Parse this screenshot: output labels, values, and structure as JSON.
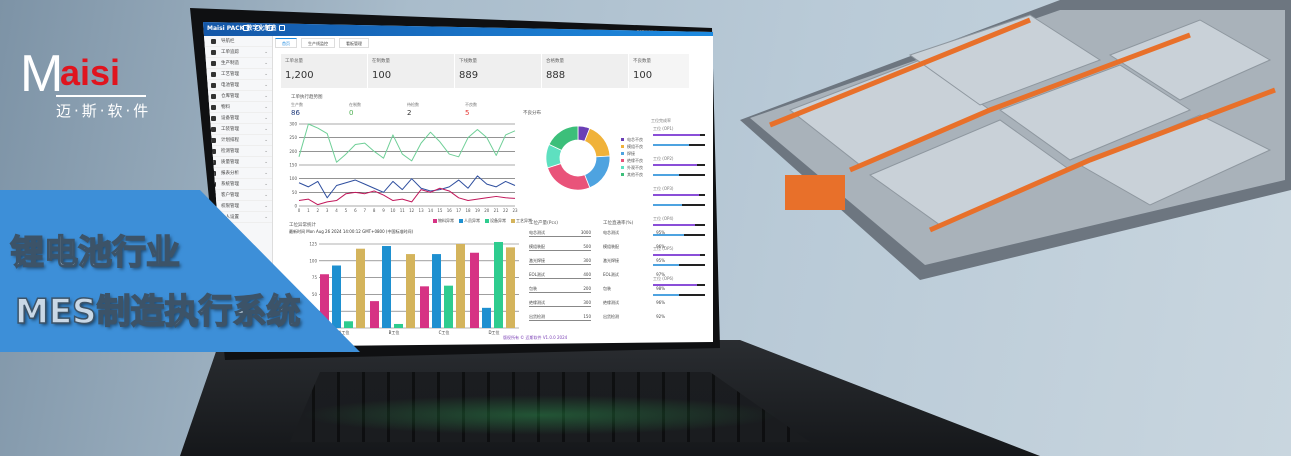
{
  "logo": {
    "mark_m": "M",
    "mark_rest": "aisi",
    "subtitle": "迈·斯·软·件"
  },
  "slogan": {
    "line1": "锂电池行业",
    "line2": "MES制造执行系统"
  },
  "screen": {
    "brand": "Maisi PACK 数字化制造",
    "header_right": "2024-08-26 14:00:12 admin",
    "sidebar": {
      "title": "导航栏",
      "items": [
        "工单追踪",
        "生产制造",
        "工艺管理",
        "电池管理",
        "仓库管理",
        "物料",
        "设备管理",
        "工装管理",
        "计划排程",
        "检测管理",
        "质量管理",
        "报表分析",
        "系统管理",
        "客户管理",
        "权限管理",
        "个人设置"
      ]
    },
    "tabs": [
      "首页",
      "生产线监控",
      "看板管理"
    ],
    "stats": [
      {
        "label": "工单总量",
        "value": "1,200"
      },
      {
        "label": "在制数量",
        "value": "100"
      },
      {
        "label": "下线数量",
        "value": "889"
      },
      {
        "label": "合格数量",
        "value": "888"
      },
      {
        "label": "不良数量",
        "value": "100"
      }
    ],
    "line_chart": {
      "title": "工单执行趋势图",
      "kpis": [
        {
          "label": "生产数",
          "value": "86",
          "color": "#1f3a7a"
        },
        {
          "label": "在制数",
          "value": "0",
          "color": "#4caf50"
        },
        {
          "label": "待检数",
          "value": "2",
          "color": "#333"
        },
        {
          "label": "不良数",
          "value": "5",
          "color": "#e53935"
        }
      ],
      "x": [
        0,
        1,
        2,
        3,
        4,
        5,
        6,
        7,
        8,
        9,
        10,
        11,
        12,
        13,
        14,
        15,
        16,
        17,
        18,
        19,
        20,
        21,
        22,
        23
      ],
      "ylim": [
        0,
        300
      ],
      "yticks": [
        0,
        50,
        100,
        150,
        200,
        250,
        300
      ],
      "series": [
        {
          "color": "#6fcf97",
          "values": [
            180,
            300,
            285,
            265,
            160,
            190,
            225,
            230,
            200,
            175,
            260,
            190,
            165,
            230,
            270,
            235,
            190,
            180,
            250,
            280,
            250,
            185,
            260,
            275
          ]
        },
        {
          "color": "#2f4f9f",
          "values": [
            85,
            70,
            90,
            30,
            75,
            85,
            95,
            80,
            65,
            50,
            90,
            60,
            100,
            65,
            55,
            60,
            70,
            95,
            65,
            110,
            80,
            70,
            90,
            75
          ]
        },
        {
          "color": "#c2185b",
          "values": [
            20,
            25,
            5,
            15,
            20,
            45,
            50,
            45,
            55,
            40,
            20,
            25,
            15,
            60,
            50,
            65,
            55,
            30,
            20,
            25,
            30,
            35,
            30,
            28
          ]
        }
      ]
    },
    "bar_chart": {
      "title": "工位异常统计",
      "subtitle": "最新时间 Mon Aug 26 2024 14:00:12 GMT+0800 (中国标准时间)",
      "legend": [
        "物料异常",
        "人员异常",
        "设备异常",
        "工艺异常"
      ],
      "categories": [
        "A工位",
        "B工位",
        "C工位",
        "D工位"
      ],
      "ylim": [
        0,
        125
      ],
      "yticks": [
        0,
        25,
        50,
        75,
        100,
        125
      ],
      "series": [
        {
          "name": "物料异常",
          "color": "#d63384",
          "values": [
            80,
            40,
            62,
            112
          ]
        },
        {
          "name": "人员异常",
          "color": "#1e90d0",
          "values": [
            93,
            122,
            110,
            30
          ]
        },
        {
          "name": "设备异常",
          "color": "#2ecc8f",
          "values": [
            10,
            6,
            63,
            128
          ]
        },
        {
          "name": "工艺异常",
          "color": "#d4b45c",
          "values": [
            118,
            110,
            125,
            120
          ]
        }
      ]
    },
    "donut": {
      "title": "不良分布",
      "slices": [
        {
          "label": "电芯不良",
          "value": 6,
          "color": "#6a3fb5"
        },
        {
          "label": "模组不良",
          "value": 18,
          "color": "#f0b23a"
        },
        {
          "label": "焊接",
          "value": 20,
          "color": "#4ea3e0"
        },
        {
          "label": "绝缘不良",
          "value": 26,
          "color": "#e9537a"
        },
        {
          "label": "外观不良",
          "value": 12,
          "color": "#5ee0c0"
        },
        {
          "label": "其他不良",
          "value": 18,
          "color": "#3cbf7a"
        }
      ]
    },
    "table1": {
      "title": "工位产量(Pcs)",
      "rows": [
        [
          "电芯测试",
          "3000"
        ],
        [
          "模组装配",
          "500"
        ],
        [
          "激光焊接",
          "300"
        ],
        [
          "EOL测试",
          "400"
        ],
        [
          "包装",
          "200"
        ],
        [
          "绝缘测试",
          "300"
        ],
        [
          "出货检测",
          "150"
        ]
      ]
    },
    "table2": {
      "title": "工位直通率(%)",
      "rows": [
        [
          "电芯测试",
          "95%"
        ],
        [
          "模组装配",
          "96%"
        ],
        [
          "激光焊接",
          "95%"
        ],
        [
          "EOL测试",
          "97%"
        ],
        [
          "包装",
          "98%"
        ],
        [
          "绝缘测试",
          "96%"
        ],
        [
          "出货检测",
          "92%"
        ]
      ]
    },
    "progress": {
      "title": "工位完成率",
      "items": [
        {
          "label": "工位 (OP1)",
          "a": 0.9,
          "b": 0.7
        },
        {
          "label": "工位 (OP2)",
          "a": 0.85,
          "b": 0.5
        },
        {
          "label": "工位 (OP3)",
          "a": 0.88,
          "b": 0.55
        },
        {
          "label": "工位 (OP4)",
          "a": 0.8,
          "b": 0.6
        },
        {
          "label": "工位 (OP5)",
          "a": 0.9,
          "b": 0.5
        },
        {
          "label": "工位 (OP6)",
          "a": 0.85,
          "b": 0.5
        }
      ]
    },
    "footer": "版权所有 © 迈斯软件 V1.0.0 2024"
  }
}
